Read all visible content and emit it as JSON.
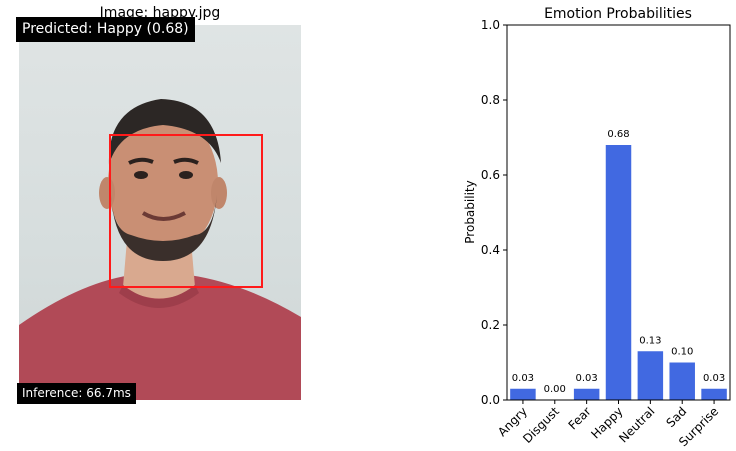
{
  "image_panel": {
    "title": "Image: happy.jpg",
    "prediction_label": "Predicted: Happy (0.68)",
    "inference_label": "Inference: 66.7ms"
  },
  "chart_data": {
    "type": "bar",
    "title": "Emotion Probabilities",
    "xlabel": "",
    "ylabel": "Probability",
    "categories": [
      "Angry",
      "Disgust",
      "Fear",
      "Happy",
      "Neutral",
      "Sad",
      "Surprise"
    ],
    "values": [
      0.03,
      0.0,
      0.03,
      0.68,
      0.13,
      0.1,
      0.03
    ],
    "data_labels": [
      "0.03",
      "0.00",
      "0.03",
      "0.68",
      "0.13",
      "0.10",
      "0.03"
    ],
    "ylim": [
      0,
      1.0
    ],
    "yticks": [
      "0.0",
      "0.2",
      "0.4",
      "0.6",
      "0.8",
      "1.0"
    ],
    "grid": false,
    "bar_color": "#4169e1"
  }
}
